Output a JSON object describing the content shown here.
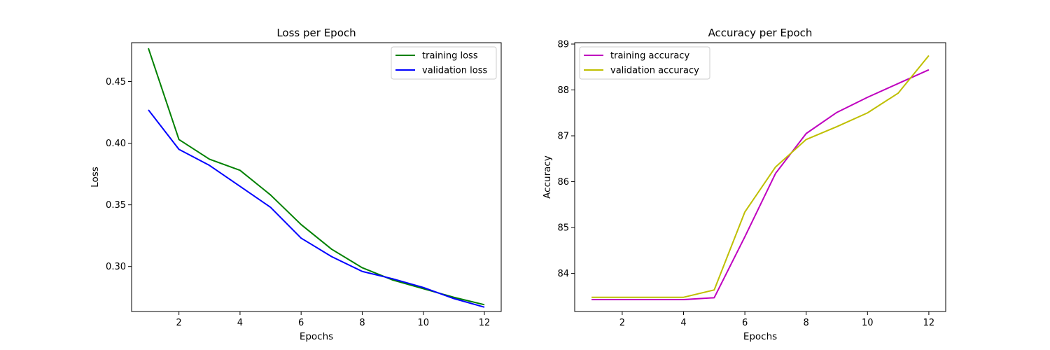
{
  "chart_data": [
    {
      "type": "line",
      "title": "Loss per Epoch",
      "xlabel": "Epochs",
      "ylabel": "Loss",
      "x": [
        1,
        2,
        3,
        4,
        5,
        6,
        7,
        8,
        9,
        10,
        11,
        12
      ],
      "xlim": [
        0.45,
        12.55
      ],
      "ylim": [
        0.2635,
        0.4815
      ],
      "xticks": [
        2,
        4,
        6,
        8,
        10,
        12
      ],
      "xtick_labels": [
        "2",
        "4",
        "6",
        "8",
        "10",
        "12"
      ],
      "yticks": [
        0.3,
        0.35,
        0.4,
        0.45
      ],
      "ytick_labels": [
        "0.30",
        "0.35",
        "0.40",
        "0.45"
      ],
      "legend_position": "upper right",
      "grid": false,
      "series": [
        {
          "name": "training loss",
          "color": "#008000",
          "values": [
            0.477,
            0.403,
            0.387,
            0.378,
            0.358,
            0.334,
            0.314,
            0.299,
            0.289,
            0.282,
            0.275,
            0.269
          ]
        },
        {
          "name": "validation loss",
          "color": "#0000ff",
          "values": [
            0.427,
            0.395,
            0.382,
            0.365,
            0.348,
            0.323,
            0.308,
            0.296,
            0.29,
            0.283,
            0.274,
            0.267
          ]
        }
      ]
    },
    {
      "type": "line",
      "title": "Accuracy per Epoch",
      "xlabel": "Epochs",
      "ylabel": "Accuracy",
      "x": [
        1,
        2,
        3,
        4,
        5,
        6,
        7,
        8,
        9,
        10,
        11,
        12
      ],
      "xlim": [
        0.45,
        12.55
      ],
      "ylim": [
        83.17,
        89.03
      ],
      "xticks": [
        2,
        4,
        6,
        8,
        10,
        12
      ],
      "xtick_labels": [
        "2",
        "4",
        "6",
        "8",
        "10",
        "12"
      ],
      "yticks": [
        84,
        85,
        86,
        87,
        88,
        89
      ],
      "ytick_labels": [
        "84",
        "85",
        "86",
        "87",
        "88",
        "89"
      ],
      "legend_position": "upper left",
      "grid": false,
      "series": [
        {
          "name": "training accuracy",
          "color": "#bf00bf",
          "values": [
            83.43,
            83.43,
            83.43,
            83.43,
            83.47,
            84.8,
            86.18,
            87.05,
            87.51,
            87.84,
            88.14,
            88.44
          ]
        },
        {
          "name": "validation accuracy",
          "color": "#bfbf00",
          "values": [
            83.48,
            83.48,
            83.48,
            83.48,
            83.64,
            85.34,
            86.32,
            86.92,
            87.2,
            87.5,
            87.93,
            88.75
          ]
        }
      ]
    }
  ]
}
